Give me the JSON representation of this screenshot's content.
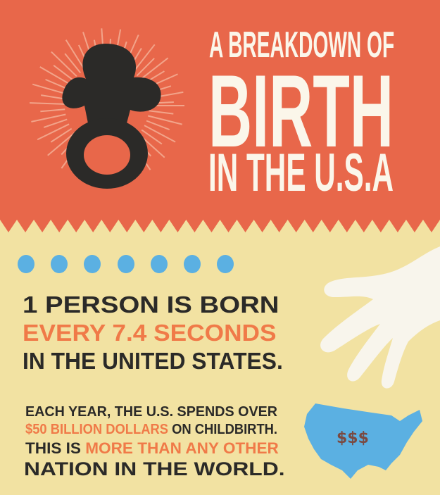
{
  "header": {
    "title_line1": "A BREAKDOWN OF",
    "title_line2": "BIRTH",
    "title_line3": "IN THE U.S.A",
    "icon": "pacifier-icon"
  },
  "fact1": {
    "line1": "1 PERSON IS BORN",
    "line2": "EVERY 7.4 SECONDS",
    "line3": "IN THE UNITED STATES."
  },
  "fact2": {
    "line1": "EACH YEAR, THE U.S. SPENDS OVER",
    "line2_highlight": "$50 BILLION DOLLARS",
    "line2_rest": " ON CHILDBIRTH.",
    "line3_start": "THIS IS ",
    "line3_highlight": "MORE THAN ANY OTHER",
    "line4": "NATION IN THE WORLD."
  },
  "map": {
    "label": "$$$",
    "icon": "usa-map-icon"
  },
  "hand": {
    "icon": "hand-icon"
  },
  "colors": {
    "red": "#e8674a",
    "yellow": "#f2e2a2",
    "blue": "#5bb0e2",
    "orange": "#f07a48",
    "dark": "#2b2a28",
    "white": "#fbf6ea"
  }
}
